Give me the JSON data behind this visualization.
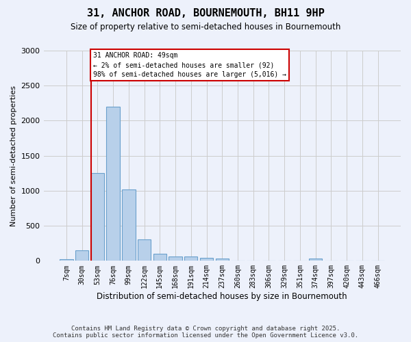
{
  "title": "31, ANCHOR ROAD, BOURNEMOUTH, BH11 9HP",
  "subtitle": "Size of property relative to semi-detached houses in Bournemouth",
  "xlabel": "Distribution of semi-detached houses by size in Bournemouth",
  "ylabel": "Number of semi-detached properties",
  "bin_labels": [
    "7sqm",
    "30sqm",
    "53sqm",
    "76sqm",
    "99sqm",
    "122sqm",
    "145sqm",
    "168sqm",
    "191sqm",
    "214sqm",
    "237sqm",
    "260sqm",
    "283sqm",
    "306sqm",
    "329sqm",
    "351sqm",
    "374sqm",
    "397sqm",
    "420sqm",
    "443sqm",
    "466sqm"
  ],
  "bar_values": [
    20,
    150,
    1250,
    2200,
    1020,
    310,
    100,
    60,
    60,
    40,
    30,
    0,
    0,
    0,
    0,
    0,
    28,
    0,
    0,
    0,
    0
  ],
  "bar_color": "#b8d0ea",
  "bar_edgecolor": "#6aa0cc",
  "vline_color": "#cc0000",
  "annotation_edgecolor": "#cc0000",
  "annotation_bg": "#ffffff",
  "grid_color": "#cccccc",
  "bg_color": "#edf1fb",
  "ylim": [
    0,
    3000
  ],
  "yticks": [
    0,
    500,
    1000,
    1500,
    2000,
    2500,
    3000
  ],
  "property_label": "31 ANCHOR ROAD: 49sqm",
  "annot_line2": "← 2% of semi-detached houses are smaller (92)",
  "annot_line3": "98% of semi-detached houses are larger (5,016) →",
  "vline_bin_index": 2,
  "footnote_line1": "Contains HM Land Registry data © Crown copyright and database right 2025.",
  "footnote_line2": "Contains public sector information licensed under the Open Government Licence v3.0."
}
